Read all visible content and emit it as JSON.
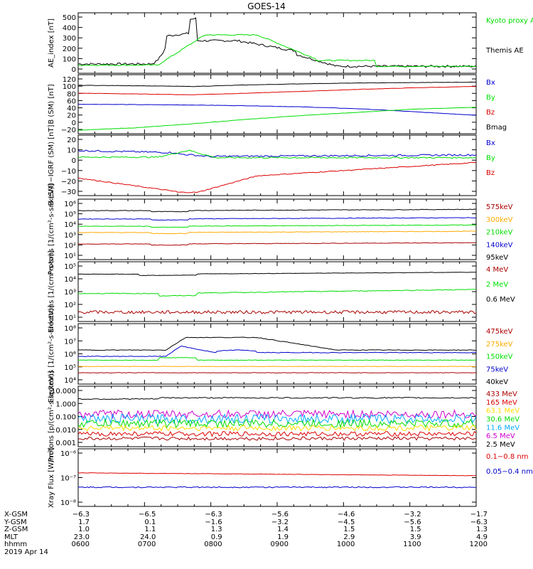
{
  "title": "GOES-14",
  "colors": {
    "black": "#000000",
    "green": "#00dd00",
    "blue": "#0000cc",
    "red": "#dd0000",
    "orange": "#ffaa00",
    "cyan": "#00aaff",
    "magenta": "#cc00cc",
    "brown": "#aa0000"
  },
  "chart_data": [
    {
      "type": "line",
      "ylabel": "AE_index [nT]",
      "yticks": [
        "500",
        "400",
        "300",
        "200",
        "100",
        "0"
      ],
      "series": [
        {
          "name": "Kyoto proxy AE",
          "color": "#00dd00"
        },
        {
          "name": "Themis AE",
          "color": "#000000"
        }
      ],
      "legend": [
        "Kyoto proxy AE",
        "",
        "Themis AE"
      ]
    },
    {
      "type": "line",
      "ylabel": "B (SM) [nT]",
      "yticks": [
        "120",
        "100",
        "80",
        "60",
        "40",
        "20",
        "0",
        "−20"
      ],
      "series": [
        {
          "name": "Bx",
          "color": "#0000cc",
          "values": [
            50,
            49,
            48,
            46,
            43,
            38,
            30,
            22
          ]
        },
        {
          "name": "By",
          "color": "#00dd00",
          "values": [
            -16,
            -10,
            0,
            12,
            22,
            30,
            38,
            42
          ]
        },
        {
          "name": "Bz",
          "color": "#dd0000",
          "values": [
            78,
            76,
            74,
            78,
            83,
            88,
            92,
            95
          ]
        },
        {
          "name": "Bmag",
          "color": "#000000",
          "values": [
            98,
            97,
            95,
            99,
            102,
            104,
            105,
            106
          ]
        }
      ]
    },
    {
      "type": "line",
      "ylabel": "B (SM)−IGRF (SM) [nT]",
      "yticks": [
        "20",
        "10",
        "0",
        "−10",
        "−20",
        "−30"
      ],
      "series": [
        {
          "name": "Bx",
          "color": "#0000cc"
        },
        {
          "name": "By",
          "color": "#00dd00"
        },
        {
          "name": "Bz",
          "color": "#dd0000"
        }
      ]
    },
    {
      "type": "line",
      "ylabel": "Protons [1/(cm²-s-sr-keV)]",
      "yticks": [
        "10⁶",
        "10⁵",
        "10⁴",
        "10³",
        "10²",
        "10¹"
      ],
      "series": [
        {
          "name": "575keV",
          "color": "#aa0000"
        },
        {
          "name": "300keV",
          "color": "#ffaa00"
        },
        {
          "name": "210keV",
          "color": "#00dd00"
        },
        {
          "name": "140keV",
          "color": "#0000cc"
        },
        {
          "name": "95keV",
          "color": "#000000"
        }
      ]
    },
    {
      "type": "line",
      "ylabel": "Electrons [1/(cm²-s-sr)]",
      "yticks": [
        "10⁵",
        "10⁴",
        "10³",
        "10²",
        "10¹"
      ],
      "series": [
        {
          "name": "4 MeV",
          "color": "#aa0000"
        },
        {
          "name": "2 MeV",
          "color": "#00dd00"
        },
        {
          "name": "0.6 MeV",
          "color": "#000000"
        }
      ]
    },
    {
      "type": "line",
      "ylabel": "Electrons [1/(cm²-s-sr-keV)]",
      "yticks": [
        "10⁸",
        "10⁷",
        "10⁶",
        "10⁵",
        "10⁴"
      ],
      "series": [
        {
          "name": "475keV",
          "color": "#aa0000"
        },
        {
          "name": "275keV",
          "color": "#ffaa00"
        },
        {
          "name": "150keV",
          "color": "#00dd00"
        },
        {
          "name": "75keV",
          "color": "#0000cc"
        },
        {
          "name": "40keV",
          "color": "#000000"
        }
      ]
    },
    {
      "type": "line",
      "ylabel": "Protons [p/(cm²-s-sr-keV)]",
      "yticks": [
        "10.000",
        "1.000",
        "0.100",
        "0.010",
        "0.001"
      ],
      "series": [
        {
          "name": "433 MeV",
          "color": "#aa0000"
        },
        {
          "name": "165 MeV",
          "color": "#dd0000"
        },
        {
          "name": "63.1 MeV",
          "color": "#ffdd00"
        },
        {
          "name": "30.6 MeV",
          "color": "#00dd00"
        },
        {
          "name": "11.6 MeV",
          "color": "#00aaff"
        },
        {
          "name": "6.5 MeV",
          "color": "#cc00cc"
        },
        {
          "name": "2.5 MeV",
          "color": "#000000"
        }
      ]
    },
    {
      "type": "line",
      "ylabel": "Xray Flux [W/m²]",
      "yticks": [
        "10⁻⁶",
        "10⁻⁷",
        "10⁻⁸"
      ],
      "series": [
        {
          "name": "0.1−0.8 nm",
          "color": "#dd0000"
        },
        {
          "name": "0.05−0.4 nm",
          "color": "#0000cc"
        }
      ]
    }
  ],
  "footer": {
    "labels": [
      "X-GSM",
      "Y-GSM",
      "Z-GSM",
      "MLT",
      "hhmm",
      "2019 Apr 14"
    ],
    "columns": [
      [
        "−6.3",
        "1.7",
        "1.0",
        "23.0",
        "0600"
      ],
      [
        "−6.5",
        "0.1",
        "1.1",
        "24.0",
        "0700"
      ],
      [
        "−6.3",
        "−1.6",
        "1.3",
        "0.9",
        "0800"
      ],
      [
        "−5.6",
        "−3.2",
        "1.4",
        "1.9",
        "0900"
      ],
      [
        "−4.6",
        "−4.5",
        "1.5",
        "2.9",
        "1000"
      ],
      [
        "−3.2",
        "−5.6",
        "1.5",
        "3.9",
        "1100"
      ],
      [
        "−1.7",
        "−6.3",
        "1.3",
        "4.9",
        "1200"
      ]
    ]
  }
}
